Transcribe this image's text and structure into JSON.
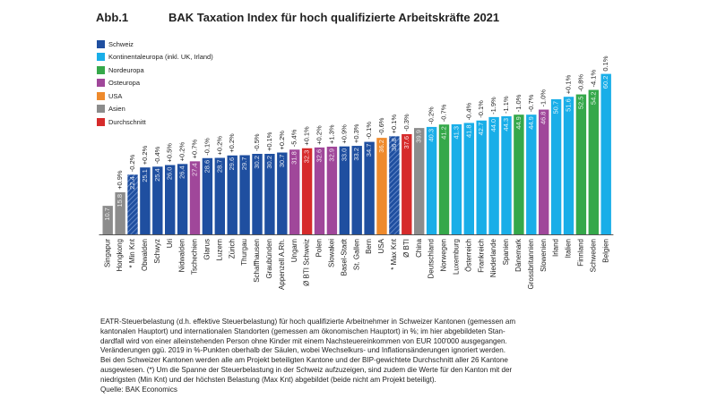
{
  "header": {
    "label": "Abb.1",
    "title": "BAK Taxation Index für hoch qualifizierte Arbeitskräfte 2021"
  },
  "legend": [
    {
      "name": "Schweiz",
      "color": "#1f4fa0"
    },
    {
      "name": "Kontinentaleuropa (inkl. UK, Irland)",
      "color": "#19aee8"
    },
    {
      "name": "Nordeuropa",
      "color": "#35a84a"
    },
    {
      "name": "Osteuropa",
      "color": "#a0479a"
    },
    {
      "name": "USA",
      "color": "#ee8a2c"
    },
    {
      "name": "Asien",
      "color": "#8c8c8c"
    },
    {
      "name": "Durchschnitt",
      "color": "#d62b2b"
    }
  ],
  "chart_data": {
    "type": "bar",
    "ylim": [
      0,
      65
    ],
    "categories": [
      "Singapur",
      "Hongkong",
      "* Min Knt",
      "Obwalden",
      "Schwyz",
      "Uri",
      "Nidwalden",
      "Tschechien",
      "Glarus",
      "Luzern",
      "Zürich",
      "Thurgau",
      "Schaffhausen",
      "Graubünden",
      "Appenzell A.Rh.",
      "Ungarn",
      "Ø BTI Schweiz",
      "Polen",
      "Slowakei",
      "Basel-Stadt",
      "St. Gallen",
      "Bern",
      "USA",
      "* Max Knt",
      "Ø BTI",
      "China",
      "Deutschland",
      "Norwegen",
      "Luxemburg",
      "Österreich",
      "Frankreich",
      "Niederlande",
      "Spanien",
      "Dänemark",
      "Grossbritannien",
      "Slowenien",
      "Irland",
      "Italien",
      "Finnland",
      "Schweden",
      "Belgien"
    ],
    "values": [
      10.7,
      15.8,
      22.4,
      25.1,
      25.4,
      26.0,
      26.4,
      27.4,
      28.6,
      28.7,
      29.6,
      29.7,
      30.2,
      30.2,
      30.7,
      31.8,
      32.3,
      32.6,
      32.9,
      33.0,
      33.2,
      34.7,
      36.2,
      36.8,
      37.6,
      39.9,
      40.3,
      41.2,
      41.3,
      41.8,
      42.7,
      44.0,
      44.3,
      44.9,
      44.9,
      46.8,
      50.7,
      51.6,
      52.5,
      54.2,
      60.2
    ],
    "changes": [
      "",
      "+0.9%",
      "-0.2%",
      "+0.2%",
      "-0.4%",
      "+0.5%",
      "+0.2%",
      "+0.7%",
      "-0.1%",
      "+0.2%",
      "+0.2%",
      "",
      "-0.5%",
      "+0.1%",
      "+0.2%",
      "-5.4%",
      "+0.1%",
      "+0.2%",
      "+1.3%",
      "+0.9%",
      "+0.3%",
      "-0.1%",
      "-0.6%",
      "+0.1%",
      "-0.3%",
      "",
      "-0.2%",
      "-0.7%",
      "",
      "-0.4%",
      "-0.1%",
      "-1.9%",
      "-1.1%",
      "-1.0%",
      "-0.7%",
      "-1.0%",
      "",
      "+0.1%",
      "-0.8%",
      "-4.1%",
      "0.1%"
    ],
    "groups": [
      "Asien",
      "Asien",
      "Schweiz",
      "Schweiz",
      "Schweiz",
      "Schweiz",
      "Schweiz",
      "Osteuropa",
      "Schweiz",
      "Schweiz",
      "Schweiz",
      "Schweiz",
      "Schweiz",
      "Schweiz",
      "Schweiz",
      "Osteuropa",
      "Durchschnitt",
      "Osteuropa",
      "Osteuropa",
      "Schweiz",
      "Schweiz",
      "Schweiz",
      "USA",
      "Schweiz",
      "Durchschnitt",
      "Asien",
      "Kontinentaleuropa (inkl. UK, Irland)",
      "Nordeuropa",
      "Kontinentaleuropa (inkl. UK, Irland)",
      "Kontinentaleuropa (inkl. UK, Irland)",
      "Kontinentaleuropa (inkl. UK, Irland)",
      "Kontinentaleuropa (inkl. UK, Irland)",
      "Kontinentaleuropa (inkl. UK, Irland)",
      "Nordeuropa",
      "Kontinentaleuropa (inkl. UK, Irland)",
      "Osteuropa",
      "Kontinentaleuropa (inkl. UK, Irland)",
      "Kontinentaleuropa (inkl. UK, Irland)",
      "Nordeuropa",
      "Nordeuropa",
      "Kontinentaleuropa (inkl. UK, Irland)"
    ],
    "value_labels": [
      "10.7",
      "15.8",
      "22.4",
      "25.1",
      "25.4",
      "26.0",
      "26.4",
      "27.4",
      "28.6",
      "28.7",
      "29.6",
      "29.7",
      "30.2",
      "30.2",
      "30.7",
      "31.8",
      "32.3",
      "32.6",
      "32.9",
      "33.0",
      "33.2",
      "34.7",
      "36.2",
      "36.8",
      "37.6",
      "39.9",
      "40.3",
      "41.2",
      "41.3",
      "41.8",
      "42.7",
      "44.0",
      "44.3",
      "44.9",
      "44.9",
      "46.8",
      "50.7",
      "51.6",
      "52.5",
      "54.2",
      "60.2"
    ],
    "pattern_bars": [
      "* Min Knt",
      "* Max Knt"
    ]
  },
  "note": [
    "EATR-Steuerbelastung (d.h. effektive Steuerbelastung) für hoch qualifizierte Arbeitnehmer in Schweizer Kantonen (gemessen am",
    "kantonalen Hauptort) und internationalen Standorten (gemessen am ökonomischen Hauptort) in %; im hier abgebildeten Stan-",
    "dardfall wird von einer alleinstehenden Person ohne Kinder mit einem Nachsteuereinkommen von EUR 100'000 ausgegangen.",
    "Veränderungen ggü. 2019 in %-Punkten oberhalb der Säulen, wobei Wechselkurs- und Inflationsänderungen ignoriert werden.",
    "Bei den Schweizer Kantonen werden alle am Projekt beteiligten Kantone und der BIP-gewichtete Durchschnitt aller 26 Kantone",
    "ausgewiesen. (*) Um die Spanne der Steuerbelastung in der Schweiz aufzuzeigen, sind zudem die Werte für den Kanton mit der",
    "niedrigsten (Min Knt) und der höchsten Belastung (Max Knt) abgebildet (beide nicht am Projekt beteiligt).",
    "Quelle: BAK Economics"
  ]
}
